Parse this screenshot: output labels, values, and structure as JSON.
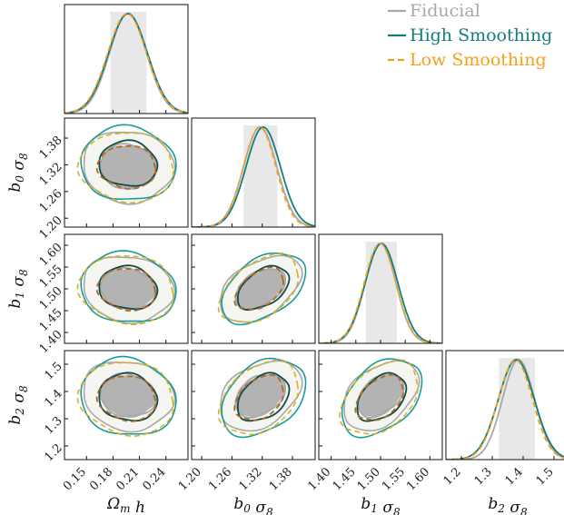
{
  "chart_data": {
    "type": "corner",
    "parameters": [
      {
        "label": "Ω_m h",
        "ticks": [
          "0.15",
          "0.18",
          "0.21",
          "0.24"
        ],
        "tick_values": [
          0.15,
          0.18,
          0.21,
          0.24
        ],
        "range": [
          0.125,
          0.265
        ]
      },
      {
        "label": "b_0 σ_8",
        "ticks": [
          "1.20",
          "1.26",
          "1.32",
          "1.38"
        ],
        "tick_values": [
          1.2,
          1.26,
          1.32,
          1.38
        ],
        "range": [
          1.18,
          1.425
        ]
      },
      {
        "label": "b_1 σ_8",
        "ticks": [
          "1.40",
          "1.45",
          "1.50",
          "1.55",
          "1.60"
        ],
        "tick_values": [
          1.4,
          1.45,
          1.5,
          1.55,
          1.6
        ],
        "range": [
          1.375,
          1.625
        ]
      },
      {
        "label": "b_2 σ_8",
        "ticks": [
          "1.2",
          "1.3",
          "1.4",
          "1.5"
        ],
        "tick_values": [
          1.2,
          1.3,
          1.4,
          1.5
        ],
        "range": [
          1.15,
          1.55
        ]
      }
    ],
    "series": [
      {
        "name": "Fiducial",
        "color": "#a8a8a8",
        "dash": "solid",
        "mean": [
          0.197,
          1.316,
          1.5,
          1.385
        ],
        "sigma": [
          0.021,
          0.033,
          0.031,
          0.052
        ]
      },
      {
        "name": "High Smoothing",
        "color": "#137d7d",
        "dash": "solid",
        "mean": [
          0.197,
          1.322,
          1.502,
          1.378
        ],
        "sigma": [
          0.022,
          0.034,
          0.033,
          0.058
        ]
      },
      {
        "name": "Low Smoothing",
        "color": "#f5a01a",
        "dash": "dashed",
        "mean": [
          0.196,
          1.315,
          1.499,
          1.375
        ],
        "sigma": [
          0.022,
          0.032,
          0.032,
          0.055
        ]
      }
    ],
    "shaded_1sigma_band": [
      [
        0.177,
        0.218
      ],
      [
        1.283,
        1.35
      ],
      [
        1.47,
        1.533
      ],
      [
        1.322,
        1.438
      ]
    ],
    "correlations": {
      "0-1": -0.05,
      "0-2": -0.1,
      "0-3": -0.1,
      "1-2": 0.45,
      "1-3": 0.35,
      "2-3": 0.4
    },
    "legend_position": "top-right"
  }
}
